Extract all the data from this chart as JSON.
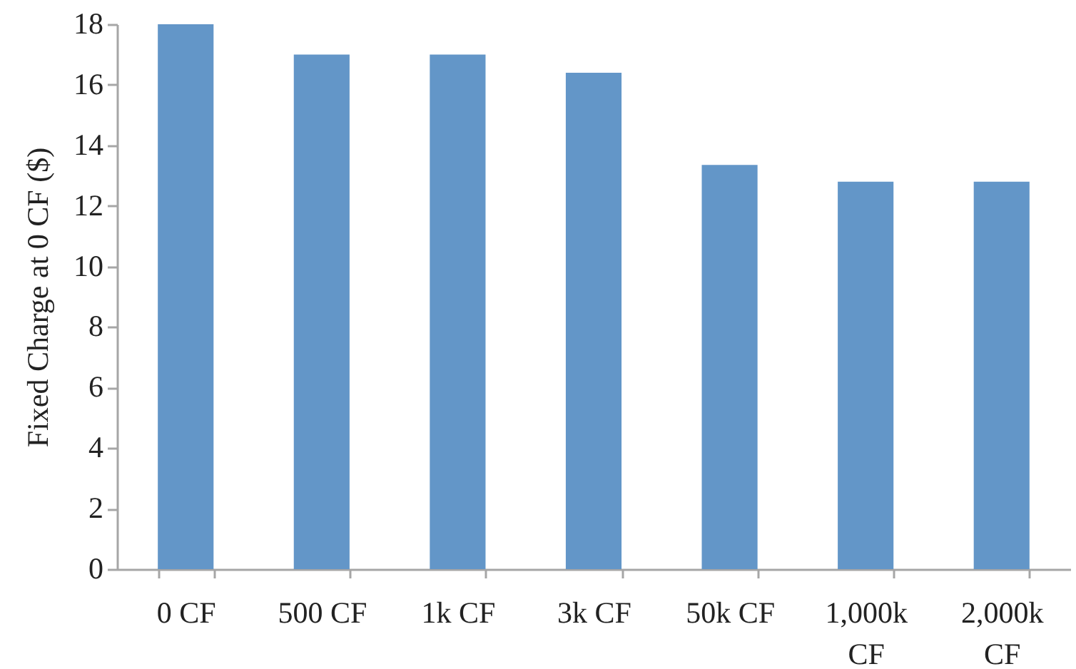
{
  "chart_data": {
    "type": "bar",
    "ylabel": "Fixed Charge at 0 CF ($)",
    "categories": [
      "0 CF",
      "500 CF",
      "1k CF",
      "3k CF",
      "50k CF",
      "1,000k CF",
      "2,000k CF"
    ],
    "values": [
      18,
      17,
      17,
      16.4,
      13.35,
      12.8,
      12.8
    ],
    "color": "#6396c8",
    "ylim": [
      0,
      18
    ],
    "yticks": [
      0,
      2,
      4,
      6,
      8,
      10,
      12,
      14,
      16,
      18
    ],
    "grid": false
  }
}
